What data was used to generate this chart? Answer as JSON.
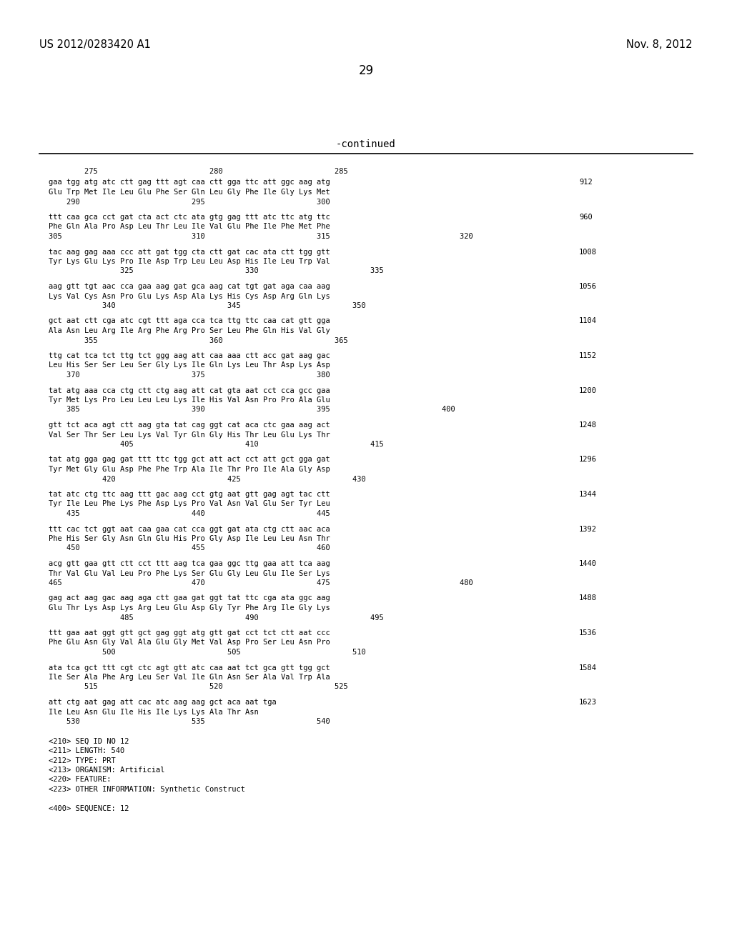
{
  "header_left": "US 2012/0283420 A1",
  "header_right": "Nov. 8, 2012",
  "page_number": "29",
  "continued_label": "-continued",
  "background_color": "#ffffff",
  "text_color": "#000000",
  "content_blocks": [
    {
      "dna": "gaa tgg atg atc ctt gag ttt agt caa ctt gga ttc att ggc aag atg",
      "num": "912",
      "aa": "Glu Trp Met Ile Leu Glu Phe Ser Gln Leu Gly Phe Ile Gly Lys Met",
      "ruler_before": "        275                         280                         285",
      "ruler_after": "    290                         295                         300"
    },
    {
      "dna": "ttt caa gca cct gat cta act ctc ata gtg gag ttt atc ttc atg ttc",
      "num": "960",
      "aa": "Phe Gln Ala Pro Asp Leu Thr Leu Ile Val Glu Phe Ile Phe Met Phe",
      "ruler_before": null,
      "ruler_after": "305                             310                         315                             320"
    },
    {
      "dna": "tac aag gag aaa ccc att gat tgg cta ctt gat cac ata ctt tgg gtt",
      "num": "1008",
      "aa": "Tyr Lys Glu Lys Pro Ile Asp Trp Leu Leu Asp His Ile Leu Trp Val",
      "ruler_before": null,
      "ruler_after": "                325                         330                         335"
    },
    {
      "dna": "aag gtt tgt aac cca gaa aag gat gca aag cat tgt gat aga caa aag",
      "num": "1056",
      "aa": "Lys Val Cys Asn Pro Glu Lys Asp Ala Lys His Cys Asp Arg Gln Lys",
      "ruler_before": null,
      "ruler_after": "            340                         345                         350"
    },
    {
      "dna": "gct aat ctt cga atc cgt ttt aga cca tca ttg ttc caa cat gtt gga",
      "num": "1104",
      "aa": "Ala Asn Leu Arg Ile Arg Phe Arg Pro Ser Leu Phe Gln His Val Gly",
      "ruler_before": null,
      "ruler_after": "        355                         360                         365"
    },
    {
      "dna": "ttg cat tca tct ttg tct ggg aag att caa aaa ctt acc gat aag gac",
      "num": "1152",
      "aa": "Leu His Ser Ser Leu Ser Gly Lys Ile Gln Lys Leu Thr Asp Lys Asp",
      "ruler_before": null,
      "ruler_after": "    370                         375                         380"
    },
    {
      "dna": "tat atg aaa cca ctg ctt ctg aag att cat gta aat cct cca gcc gaa",
      "num": "1200",
      "aa": "Tyr Met Lys Pro Leu Leu Leu Lys Ile His Val Asn Pro Pro Ala Glu",
      "ruler_before": null,
      "ruler_after": "    385                         390                         395                         400"
    },
    {
      "dna": "gtt tct aca agt ctt aag gta tat cag ggt cat aca ctc gaa aag act",
      "num": "1248",
      "aa": "Val Ser Thr Ser Leu Lys Val Tyr Gln Gly His Thr Leu Glu Lys Thr",
      "ruler_before": null,
      "ruler_after": "                405                         410                         415"
    },
    {
      "dna": "tat atg gga gag gat ttt ttc tgg gct att act cct att gct gga gat",
      "num": "1296",
      "aa": "Tyr Met Gly Glu Asp Phe Phe Trp Ala Ile Thr Pro Ile Ala Gly Asp",
      "ruler_before": null,
      "ruler_after": "            420                         425                         430"
    },
    {
      "dna": "tat atc ctg ttc aag ttt gac aag cct gtg aat gtt gag agt tac ctt",
      "num": "1344",
      "aa": "Tyr Ile Leu Phe Lys Phe Asp Lys Pro Val Asn Val Glu Ser Tyr Leu",
      "ruler_before": null,
      "ruler_after": "    435                         440                         445"
    },
    {
      "dna": "ttt cac tct ggt aat caa gaa cat cca ggt gat ata ctg ctt aac aca",
      "num": "1392",
      "aa": "Phe His Ser Gly Asn Gln Glu His Pro Gly Asp Ile Leu Leu Asn Thr",
      "ruler_before": null,
      "ruler_after": "    450                         455                         460"
    },
    {
      "dna": "acg gtt gaa gtt ctt cct ttt aag tca gaa ggc ttg gaa att tca aag",
      "num": "1440",
      "aa": "Thr Val Glu Val Leu Pro Phe Lys Ser Glu Gly Leu Glu Ile Ser Lys",
      "ruler_before": null,
      "ruler_after": "465                             470                         475                             480"
    },
    {
      "dna": "gag act aag gac aag aga ctt gaa gat ggt tat ttc cga ata ggc aag",
      "num": "1488",
      "aa": "Glu Thr Lys Asp Lys Arg Leu Glu Asp Gly Tyr Phe Arg Ile Gly Lys",
      "ruler_before": null,
      "ruler_after": "                485                         490                         495"
    },
    {
      "dna": "ttt gaa aat ggt gtt gct gag ggt atg gtt gat cct tct ctt aat ccc",
      "num": "1536",
      "aa": "Phe Glu Asn Gly Val Ala Glu Gly Met Val Asp Pro Ser Leu Asn Pro",
      "ruler_before": null,
      "ruler_after": "            500                         505                         510"
    },
    {
      "dna": "ata tca gct ttt cgt ctc agt gtt atc caa aat tct gca gtt tgg gct",
      "num": "1584",
      "aa": "Ile Ser Ala Phe Arg Leu Ser Val Ile Gln Asn Ser Ala Val Trp Ala",
      "ruler_before": null,
      "ruler_after": "        515                         520                         525"
    },
    {
      "dna": "att ctg aat gag att cac atc aag aag gct aca aat tga",
      "num": "1623",
      "aa": "Ile Leu Asn Glu Ile His Ile Lys Lys Ala Thr Asn",
      "ruler_before": null,
      "ruler_after": "    530                         535                         540"
    }
  ],
  "metadata": [
    "<210> SEQ ID NO 12",
    "<211> LENGTH: 540",
    "<212> TYPE: PRT",
    "<213> ORGANISM: Artificial",
    "<220> FEATURE:",
    "<223> OTHER INFORMATION: Synthetic Construct",
    "",
    "<400> SEQUENCE: 12"
  ]
}
